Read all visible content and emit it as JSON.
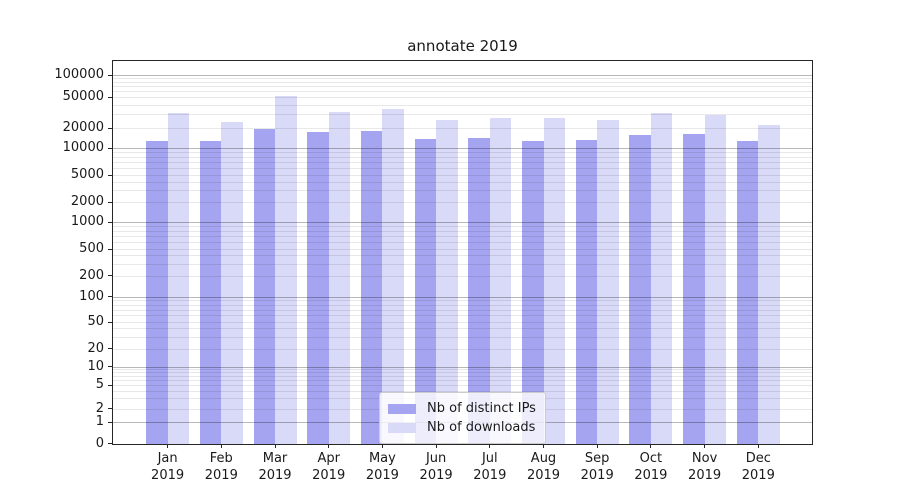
{
  "chart_data": {
    "type": "bar",
    "title": "annotate 2019",
    "categories": [
      "Jan",
      "Feb",
      "Mar",
      "Apr",
      "May",
      "Jun",
      "Jul",
      "Aug",
      "Sep",
      "Oct",
      "Nov",
      "Dec"
    ],
    "category_year": "2019",
    "series": [
      {
        "name": "Nb of distinct IPs",
        "color": "#a4a4f0",
        "values": [
          13200,
          12800,
          20000,
          18000,
          18500,
          14000,
          14500,
          12800,
          13500,
          16000,
          16600,
          12800
        ]
      },
      {
        "name": "Nb of downloads",
        "color": "#d9d9f8",
        "values": [
          32000,
          24000,
          52000,
          33000,
          36000,
          26000,
          27400,
          27600,
          25800,
          31400,
          29600,
          22500
        ]
      }
    ],
    "xlabel": "",
    "ylabel": "",
    "yscale": "symlog",
    "ylim": [
      0,
      160000
    ],
    "yticks": [
      0,
      1,
      2,
      5,
      10,
      20,
      50,
      100,
      200,
      500,
      1000,
      2000,
      5000,
      10000,
      20000,
      50000,
      100000
    ],
    "grid": "on",
    "legend_position": "lower center",
    "colors": {
      "major_grid": "rgba(0,0,0,0.28)",
      "minor_grid": "rgba(0,0,0,0.09)",
      "frame": "#262626",
      "text": "#1a1a1a"
    }
  }
}
